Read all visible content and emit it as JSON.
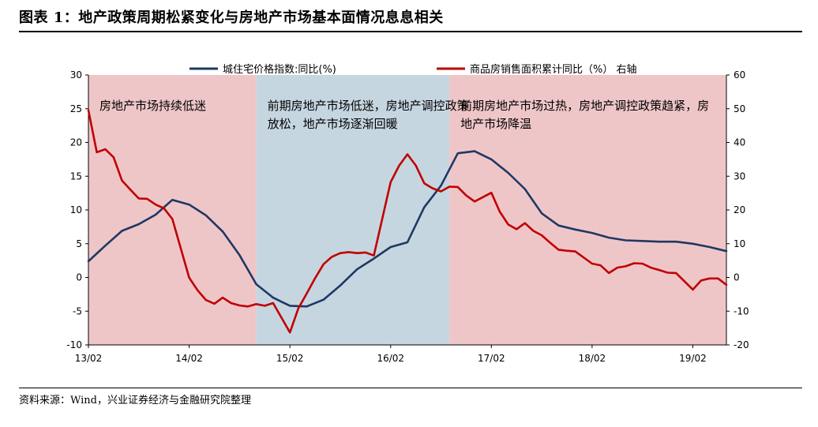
{
  "title": "图表 1：地产政策周期松紧变化与房地产市场基本面情况息息相关",
  "source": "资料来源：Wind，兴业证券经济与金融研究院整理",
  "chart_data": {
    "type": "line",
    "x_tick_labels": [
      "13/02",
      "14/02",
      "15/02",
      "16/02",
      "17/02",
      "18/02",
      "19/02"
    ],
    "x_range": [
      "2013-02",
      "2019-06"
    ],
    "y_left": {
      "min": -10,
      "max": 30,
      "step": 5,
      "ticks": [
        "30",
        "25",
        "20",
        "15",
        "10",
        "5",
        "0",
        "-5",
        "-10"
      ]
    },
    "y_right": {
      "min": -20,
      "max": 60,
      "step": 10,
      "ticks": [
        "60",
        "50",
        "40",
        "30",
        "20",
        "10",
        "0",
        "-10",
        "-20"
      ]
    },
    "legend_placement": "top",
    "grid": false,
    "shaded_periods": [
      {
        "start": "2013-02",
        "end": "2014-10",
        "color": "#efc6c8",
        "label": "房地产市场持续低迷"
      },
      {
        "start": "2014-10",
        "end": "2016-09",
        "color": "#c6d6e0",
        "label": "前期房地产市场低迷，房地产调控政策放松，地产市场逐渐回暖"
      },
      {
        "start": "2016-09",
        "end": "2019-06",
        "color": "#efc6c8",
        "label": "前期房地产市场过热，房地产调控政策趋紧，房地产市场降温"
      }
    ],
    "series": [
      {
        "name": "城住宅价格指数:同比(%)",
        "axis": "left",
        "color": "#1f3864",
        "x": [
          "2013-02",
          "2013-04",
          "2013-06",
          "2013-08",
          "2013-10",
          "2013-12",
          "2014-02",
          "2014-04",
          "2014-06",
          "2014-08",
          "2014-10",
          "2014-12",
          "2015-01",
          "2015-02",
          "2015-04",
          "2015-06",
          "2015-08",
          "2015-10",
          "2015-12",
          "2016-02",
          "2016-04",
          "2016-06",
          "2016-08",
          "2016-10",
          "2016-12",
          "2017-02",
          "2017-04",
          "2017-06",
          "2017-08",
          "2017-10",
          "2017-12",
          "2018-02",
          "2018-04",
          "2018-06",
          "2018-08",
          "2018-10",
          "2018-12",
          "2019-02",
          "2019-04",
          "2019-06"
        ],
        "y": [
          2.4,
          4.7,
          6.9,
          7.9,
          9.3,
          11.5,
          10.8,
          9.2,
          6.8,
          3.3,
          -1.0,
          -3.0,
          -3.6,
          -4.2,
          -4.3,
          -3.3,
          -1.2,
          1.2,
          2.8,
          4.5,
          5.2,
          10.4,
          13.6,
          18.4,
          18.7,
          17.5,
          15.5,
          13.1,
          9.5,
          7.7,
          7.1,
          6.6,
          5.9,
          5.5,
          5.4,
          5.3,
          5.3,
          5.0,
          4.5,
          3.9
        ]
      },
      {
        "name": "商品房销售面积累计同比（%） 右轴",
        "axis": "right",
        "color": "#c00000",
        "x": [
          "2013-02",
          "2013-03",
          "2013-04",
          "2013-05",
          "2013-06",
          "2013-07",
          "2013-08",
          "2013-09",
          "2013-10",
          "2013-11",
          "2013-12",
          "2014-02",
          "2014-03",
          "2014-04",
          "2014-05",
          "2014-06",
          "2014-07",
          "2014-08",
          "2014-09",
          "2014-10",
          "2014-11",
          "2014-12",
          "2015-02",
          "2015-03",
          "2015-04",
          "2015-05",
          "2015-06",
          "2015-07",
          "2015-08",
          "2015-09",
          "2015-10",
          "2015-11",
          "2015-12",
          "2016-02",
          "2016-03",
          "2016-04",
          "2016-05",
          "2016-06",
          "2016-07",
          "2016-08",
          "2016-09",
          "2016-10",
          "2016-11",
          "2016-12",
          "2017-02",
          "2017-03",
          "2017-04",
          "2017-05",
          "2017-06",
          "2017-07",
          "2017-08",
          "2017-09",
          "2017-10",
          "2017-11",
          "2017-12",
          "2018-02",
          "2018-03",
          "2018-04",
          "2018-05",
          "2018-06",
          "2018-07",
          "2018-08",
          "2018-09",
          "2018-10",
          "2018-11",
          "2018-12",
          "2019-02",
          "2019-03",
          "2019-04",
          "2019-05",
          "2019-06"
        ],
        "y": [
          49.5,
          37.1,
          38.0,
          35.6,
          28.7,
          26.0,
          23.4,
          23.3,
          21.6,
          20.5,
          17.3,
          -0.1,
          -3.8,
          -6.7,
          -7.8,
          -6.0,
          -7.6,
          -8.3,
          -8.6,
          -7.9,
          -8.4,
          -7.6,
          -16.3,
          -9.2,
          -4.8,
          -0.2,
          3.9,
          6.1,
          7.2,
          7.5,
          7.2,
          7.4,
          6.5,
          28.2,
          33.1,
          36.5,
          33.2,
          27.9,
          26.4,
          25.5,
          26.9,
          26.8,
          24.3,
          22.5,
          25.1,
          19.5,
          15.7,
          14.3,
          16.1,
          13.8,
          12.5,
          10.3,
          8.2,
          7.9,
          7.7,
          4.1,
          3.6,
          1.3,
          2.9,
          3.3,
          4.2,
          4.1,
          2.9,
          2.2,
          1.4,
          1.3,
          -3.6,
          -0.9,
          -0.3,
          -0.3,
          -2.2
        ]
      }
    ]
  }
}
